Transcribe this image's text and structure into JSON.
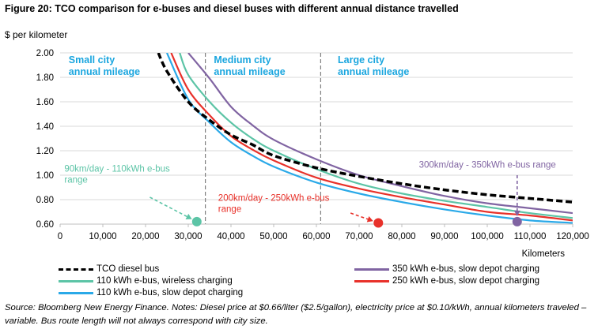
{
  "figure": {
    "title": "Figure 20: TCO comparison for e-buses and diesel buses with different annual distance travelled",
    "source": "Source: Bloomberg New Energy Finance. Notes: Diesel price at $0.66/liter ($2.5/gallon), electricity price at $0.10/kWh, annual kilometers traveled – variable. Bus route length will not always correspond with city size."
  },
  "chart_data": {
    "type": "line",
    "ylabel": "$ per kilometer",
    "xlabel": "Kilometers",
    "xlim": [
      0,
      120000
    ],
    "ylim": [
      0.6,
      2.0
    ],
    "x_ticks": [
      0,
      10000,
      20000,
      30000,
      40000,
      50000,
      60000,
      70000,
      80000,
      90000,
      100000,
      110000,
      120000
    ],
    "x_tick_labels": [
      "0",
      "10,000",
      "20,000",
      "30,000",
      "40,000",
      "50,000",
      "60,000",
      "70,000",
      "80,000",
      "90,000",
      "100,000",
      "110,000",
      "120,000"
    ],
    "y_ticks": [
      0.6,
      0.8,
      1.0,
      1.2,
      1.4,
      1.6,
      1.8,
      2.0
    ],
    "y_tick_labels": [
      "0.60",
      "0.80",
      "1.00",
      "1.20",
      "1.40",
      "1.60",
      "1.80",
      "2.00"
    ],
    "grid": "horizontal",
    "legend_position": "bottom",
    "series": [
      {
        "name": "TCO diesel bus",
        "color": "#000000",
        "dash": true,
        "points": [
          [
            23000,
            2.0
          ],
          [
            25000,
            1.85
          ],
          [
            30000,
            1.6
          ],
          [
            35000,
            1.45
          ],
          [
            40000,
            1.33
          ],
          [
            45000,
            1.25
          ],
          [
            50000,
            1.16
          ],
          [
            60000,
            1.06
          ],
          [
            70000,
            0.99
          ],
          [
            80000,
            0.93
          ],
          [
            90000,
            0.88
          ],
          [
            100000,
            0.84
          ],
          [
            110000,
            0.81
          ],
          [
            120000,
            0.78
          ]
        ]
      },
      {
        "name": "110 kWh e-bus, wireless charging",
        "color": "#5cc4a6",
        "dash": false,
        "points": [
          [
            28000,
            2.0
          ],
          [
            30000,
            1.82
          ],
          [
            35000,
            1.6
          ],
          [
            40000,
            1.43
          ],
          [
            45000,
            1.3
          ],
          [
            50000,
            1.2
          ],
          [
            60000,
            1.05
          ],
          [
            70000,
            0.93
          ],
          [
            80000,
            0.85
          ],
          [
            90000,
            0.79
          ],
          [
            100000,
            0.74
          ],
          [
            110000,
            0.69
          ],
          [
            120000,
            0.65
          ]
        ]
      },
      {
        "name": "110 kWh e-bus, slow depot charging",
        "color": "#2aa9e8",
        "dash": false,
        "points": [
          [
            25000,
            2.0
          ],
          [
            30000,
            1.62
          ],
          [
            35000,
            1.43
          ],
          [
            40000,
            1.27
          ],
          [
            45000,
            1.16
          ],
          [
            50000,
            1.07
          ],
          [
            60000,
            0.94
          ],
          [
            70000,
            0.85
          ],
          [
            80000,
            0.78
          ],
          [
            90000,
            0.72
          ],
          [
            100000,
            0.67
          ],
          [
            110000,
            0.63
          ],
          [
            120000,
            0.61
          ]
        ]
      },
      {
        "name": "350 kWh e-bus, slow depot charging",
        "color": "#8064a2",
        "dash": false,
        "points": [
          [
            30000,
            2.0
          ],
          [
            35000,
            1.79
          ],
          [
            40000,
            1.56
          ],
          [
            45000,
            1.41
          ],
          [
            50000,
            1.29
          ],
          [
            60000,
            1.13
          ],
          [
            70000,
            1.0
          ],
          [
            80000,
            0.91
          ],
          [
            90000,
            0.83
          ],
          [
            100000,
            0.77
          ],
          [
            110000,
            0.73
          ],
          [
            120000,
            0.69
          ]
        ]
      },
      {
        "name": "250 kWh e-bus, slow depot charging",
        "color": "#e8312a",
        "dash": false,
        "points": [
          [
            26000,
            2.0
          ],
          [
            30000,
            1.7
          ],
          [
            35000,
            1.49
          ],
          [
            40000,
            1.32
          ],
          [
            45000,
            1.21
          ],
          [
            50000,
            1.12
          ],
          [
            60000,
            0.98
          ],
          [
            70000,
            0.89
          ],
          [
            80000,
            0.82
          ],
          [
            90000,
            0.76
          ],
          [
            100000,
            0.7
          ],
          [
            110000,
            0.67
          ],
          [
            120000,
            0.63
          ]
        ]
      }
    ],
    "dividers": [
      {
        "x": 34000,
        "label": [
          "Medium city",
          "annual mileage"
        ]
      },
      {
        "x": 61000,
        "label": [
          "Large city",
          "annual mileage"
        ]
      }
    ],
    "region_labels": [
      {
        "x": 2000,
        "text": [
          "Small city",
          "annual mileage"
        ]
      },
      {
        "x": 36000,
        "text": [
          "Medium city",
          "annual mileage"
        ]
      },
      {
        "x": 65000,
        "text": [
          "Large city",
          "annual mileage"
        ]
      }
    ],
    "annotations": [
      {
        "text": [
          "90km/day - 110kWh e-bus",
          "range"
        ],
        "color": "#5cc4a6",
        "label_at": [
          1000,
          1.03
        ],
        "arrow_from": [
          21000,
          0.82
        ],
        "point": [
          32000,
          0.62
        ]
      },
      {
        "text": [
          "200km/day - 250kWh e-bus",
          "range"
        ],
        "color": "#e8312a",
        "label_at": [
          37000,
          0.79
        ],
        "arrow_from": [
          68000,
          0.69
        ],
        "point": [
          74500,
          0.61
        ]
      },
      {
        "text": [
          "300km/day - 350kWh e-bus range"
        ],
        "color": "#8064a2",
        "label_at": [
          84000,
          1.06
        ],
        "arrow_from": [
          107000,
          1.0
        ],
        "point": [
          107000,
          0.62
        ]
      }
    ],
    "region_label_color": "#1aa6df"
  }
}
